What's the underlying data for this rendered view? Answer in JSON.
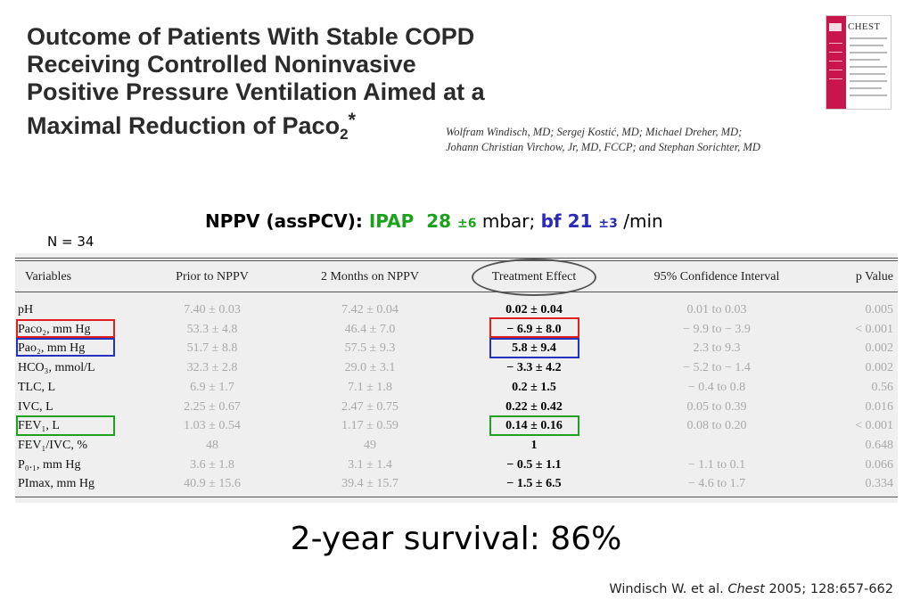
{
  "title": {
    "line1": "Outcome of Patients With Stable COPD",
    "line2": "Receiving Controlled Noninvasive",
    "line3": "Positive Pressure Ventilation Aimed at a",
    "line4_main": "Maximal Reduction of Paco",
    "line4_sub": "2",
    "line4_star": "*"
  },
  "authors": {
    "line1": "Wolfram Windisch, MD; Sergej Kostić, MD; Michael Dreher, MD;",
    "line2": "Johann Christian Virchow, Jr, MD, FCCP; and Stephan Sorichter, MD"
  },
  "journal_cover": {
    "logo": "CHEST",
    "spine_color": "#c8164c"
  },
  "nppv": {
    "prefix": "NPPV (assPCV): ",
    "ipap_label": "IPAP",
    "ipap_value": "28",
    "ipap_sd": "±6",
    "ipap_unit": " mbar; ",
    "bf_label": "bf",
    "bf_value": "21",
    "bf_sd": "±3",
    "bf_unit": " /min"
  },
  "n_label": "N = 34",
  "table": {
    "headers": [
      "Variables",
      "Prior to NPPV",
      "2 Months on NPPV",
      "Treatment Effect",
      "95% Confidence Interval",
      "p Value"
    ],
    "rows": [
      {
        "var": "pH",
        "prior": "7.40 ± 0.03",
        "after": "7.42 ± 0.04",
        "effect": "0.02 ± 0.04",
        "ci": "0.01 to 0.03",
        "p": "0.005"
      },
      {
        "var": "Paco₂, mm Hg",
        "prior": "53.3 ± 4.8",
        "after": "46.4 ± 7.0",
        "effect": "− 6.9 ± 8.0",
        "ci": "− 9.9 to − 3.9",
        "p": "< 0.001"
      },
      {
        "var": "Pao₂, mm Hg",
        "prior": "51.7 ± 8.8",
        "after": "57.5 ± 9.3",
        "effect": "5.8 ± 9.4",
        "ci": "2.3 to 9.3",
        "p": "0.002"
      },
      {
        "var": "HCO₃, mmol/L",
        "prior": "32.3 ± 2.8",
        "after": "29.0 ± 3.1",
        "effect": "− 3.3 ± 4.2",
        "ci": "− 5.2 to − 1.4",
        "p": "0.002"
      },
      {
        "var": "TLC, L",
        "prior": "6.9 ± 1.7",
        "after": "7.1 ± 1.8",
        "effect": "0.2 ± 1.5",
        "ci": "− 0.4 to 0.8",
        "p": "0.56"
      },
      {
        "var": "IVC, L",
        "prior": "2.25 ± 0.67",
        "after": "2.47 ± 0.75",
        "effect": "0.22 ± 0.42",
        "ci": "0.05 to 0.39",
        "p": "0.016"
      },
      {
        "var": "FEV₁, L",
        "prior": "1.03 ± 0.54",
        "after": "1.17 ± 0.59",
        "effect": "0.14 ± 0.16",
        "ci": "0.08 to 0.20",
        "p": "< 0.001"
      },
      {
        "var": "FEV₁/IVC, %",
        "prior": "48",
        "after": "49",
        "effect": "1",
        "ci": "",
        "p": "0.648"
      },
      {
        "var": "P₀.₁, mm Hg",
        "prior": "3.6 ± 1.8",
        "after": "3.1 ± 1.4",
        "effect": "− 0.5 ± 1.1",
        "ci": "− 1.1 to 0.1",
        "p": "0.066"
      },
      {
        "var": "PImax, mm Hg",
        "prior": "40.9 ± 15.6",
        "after": "39.4 ± 15.7",
        "effect": "− 1.5 ± 6.5",
        "ci": "− 4.6 to 1.7",
        "p": "0.334"
      }
    ]
  },
  "highlight_colors": {
    "red": "#e02020",
    "blue": "#2233c0",
    "green": "#22a022"
  },
  "survival": "2-year survival: 86%",
  "citation": {
    "authors": "Windisch W. et al. ",
    "journal": "Chest",
    "details": " 2005; 128:657-662"
  }
}
